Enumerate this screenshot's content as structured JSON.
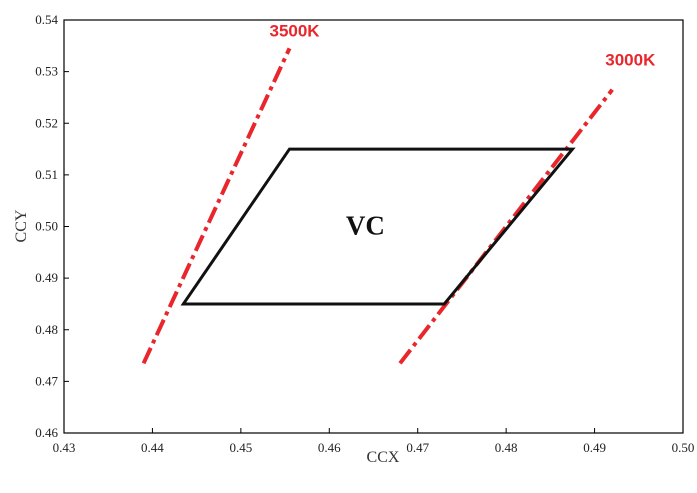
{
  "chart_data": {
    "type": "line",
    "xlabel": "CCX",
    "ylabel": "CCY",
    "xlim": [
      0.43,
      0.5
    ],
    "ylim": [
      0.46,
      0.54
    ],
    "x_ticks": [
      "0.43",
      "0.44",
      "0.45",
      "0.46",
      "0.47",
      "0.48",
      "0.49",
      "0.50"
    ],
    "y_ticks": [
      "0.46",
      "0.47",
      "0.48",
      "0.49",
      "0.50",
      "0.51",
      "0.52",
      "0.53",
      "0.54"
    ],
    "grid": false,
    "isotherms": [
      {
        "label": "3500K",
        "color": "#e8262b",
        "style": "dash-dot",
        "x": [
          0.439,
          0.4555
        ],
        "y": [
          0.4735,
          0.5345
        ]
      },
      {
        "label": "3000K",
        "color": "#e8262b",
        "style": "dash-dot",
        "x": [
          0.468,
          0.492
        ],
        "y": [
          0.4735,
          0.5265
        ]
      }
    ],
    "region": {
      "label": "VC",
      "color": "#111111",
      "points": [
        [
          0.4435,
          0.485
        ],
        [
          0.4555,
          0.515
        ],
        [
          0.4875,
          0.515
        ],
        [
          0.473,
          0.485
        ]
      ]
    }
  }
}
